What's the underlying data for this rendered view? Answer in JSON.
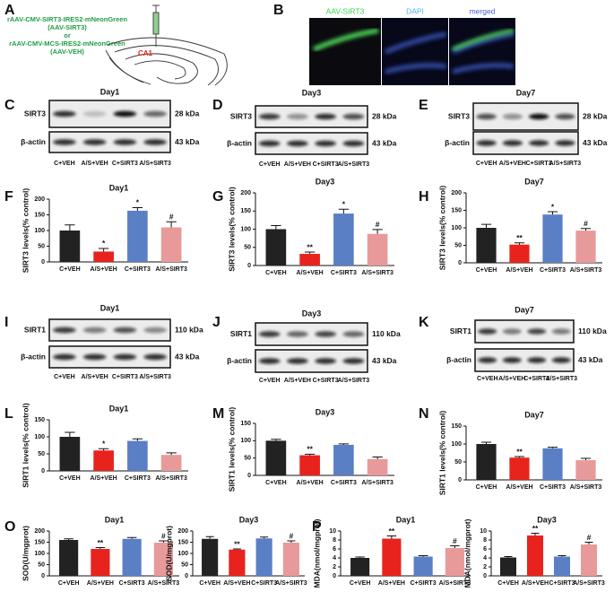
{
  "illustration": {
    "letter": "A",
    "construct_1": "rAAV-CMV-SIRT3-IRES2-mNeonGreen",
    "construct_1_short": "(AAV-SIRT3)",
    "conjunction": "or",
    "construct_2": "rAAV-CMV-MCS-IRES2-mNeonGreen",
    "construct_2_short": "(AAV-VEH)",
    "region": "CA1"
  },
  "micrograph": {
    "letter": "B",
    "labels": [
      "AAV-SIRT3",
      "DAPI",
      "merged"
    ]
  },
  "blots": [
    {
      "letter": "C",
      "title": "Day1",
      "rows": [
        {
          "protein": "SIRT3",
          "size": "28 kDa"
        },
        {
          "protein": "β-actin",
          "size": "43 kDa"
        }
      ],
      "lanes": [
        "C+VEH",
        "A/S+VEH",
        "C+SIRT3",
        "A/S+SIRT3"
      ]
    },
    {
      "letter": "D",
      "title": "Day3",
      "rows": [
        {
          "protein": "SIRT3",
          "size": "28 kDa"
        },
        {
          "protein": "β-actin",
          "size": "43 kDa"
        }
      ],
      "lanes": [
        "C+VEH",
        "A/S+VEH",
        "C+SIRT3",
        "A/S+SIRT3"
      ]
    },
    {
      "letter": "E",
      "title": "Day7",
      "rows": [
        {
          "protein": "SIRT3",
          "size": "28 kDa"
        },
        {
          "protein": "β-actin",
          "size": "43 kDa"
        }
      ],
      "lanes": [
        "C+VEH",
        "A/S+VEH",
        "C+SIRT3",
        "A/S+SIRT3"
      ]
    },
    {
      "letter": "I",
      "title": "Day1",
      "rows": [
        {
          "protein": "SIRT1",
          "size": "110 kDa"
        },
        {
          "protein": "β-actin",
          "size": "43 kDa"
        }
      ],
      "lanes": [
        "C+VEH",
        "A/S+VEH",
        "C+SIRT3",
        "A/S+SIRT3"
      ]
    },
    {
      "letter": "J",
      "title": "Day3",
      "rows": [
        {
          "protein": "SIRT1",
          "size": "110 kDa"
        },
        {
          "protein": "β-actin",
          "size": "43 kDa"
        }
      ],
      "lanes": [
        "C+VEH",
        "A/S+VEH",
        "C+SIRT3",
        "A/S+SIRT3"
      ]
    },
    {
      "letter": "K",
      "title": "Day7",
      "rows": [
        {
          "protein": "SIRT1",
          "size": "110 kDa"
        },
        {
          "protein": "β-actin",
          "size": "43 kDa"
        }
      ],
      "lanes": [
        "C+VEH",
        "A/S+VEH",
        "C+SIRT3",
        "A/S+SIRT3"
      ]
    }
  ],
  "chart_data": [
    {
      "type": "bar",
      "panel_label": "F",
      "title": "Day1",
      "y_label": "SIRT3 levels(% control)",
      "categories": [
        "C+VEH",
        "A/S+VEH",
        "C+SIRT3",
        "A/S+SIRT3"
      ],
      "values": [
        100,
        33,
        163,
        110
      ],
      "errors": [
        18,
        10,
        10,
        18
      ],
      "annotations": [
        null,
        "*",
        "*",
        "#"
      ],
      "colors": [
        "#222222",
        "#e8231e",
        "#5b7fc4",
        "#e89a9a"
      ],
      "ylim": [
        0,
        200
      ],
      "yticks": [
        0,
        50,
        100,
        150,
        200
      ]
    },
    {
      "type": "bar",
      "panel_label": "G",
      "title": "Day3",
      "y_label": "SIRT3 levels(% control)",
      "categories": [
        "C+VEH",
        "A/S+VEH",
        "C+SIRT3",
        "A/S+SIRT3"
      ],
      "values": [
        100,
        32,
        143,
        87
      ],
      "errors": [
        10,
        5,
        12,
        12
      ],
      "annotations": [
        null,
        "**",
        "*",
        "#"
      ],
      "colors": [
        "#222222",
        "#e8231e",
        "#5b7fc4",
        "#e89a9a"
      ],
      "ylim": [
        0,
        200
      ],
      "yticks": [
        0,
        50,
        100,
        150,
        200
      ]
    },
    {
      "type": "bar",
      "panel_label": "H",
      "title": "Day7",
      "y_label": "SIRT3 levels(% control)",
      "categories": [
        "C+VEH",
        "A/S+VEH",
        "C+SIRT3",
        "A/S+SIRT3"
      ],
      "values": [
        100,
        52,
        138,
        92
      ],
      "errors": [
        10,
        5,
        8,
        6
      ],
      "annotations": [
        null,
        "**",
        "*",
        "#"
      ],
      "colors": [
        "#222222",
        "#e8231e",
        "#5b7fc4",
        "#e89a9a"
      ],
      "ylim": [
        0,
        200
      ],
      "yticks": [
        0,
        50,
        100,
        150,
        200
      ]
    },
    {
      "type": "bar",
      "panel_label": "L",
      "title": "Day1",
      "y_label": "SIRT1 levels(% control)",
      "categories": [
        "C+VEH",
        "A/S+VEH",
        "C+SIRT3",
        "A/S+SIRT3"
      ],
      "values": [
        100,
        60,
        88,
        47
      ],
      "errors": [
        13,
        5,
        6,
        6
      ],
      "annotations": [
        null,
        "*",
        null,
        null
      ],
      "colors": [
        "#222222",
        "#e8231e",
        "#5b7fc4",
        "#e89a9a"
      ],
      "ylim": [
        0,
        150
      ],
      "yticks": [
        0,
        50,
        100,
        150
      ]
    },
    {
      "type": "bar",
      "panel_label": "M",
      "title": "Day3",
      "y_label": "SIRT1 levels(% control)",
      "categories": [
        "C+VEH",
        "A/S+VEH",
        "C+SIRT3",
        "A/S+SIRT3"
      ],
      "values": [
        100,
        58,
        88,
        47
      ],
      "errors": [
        4,
        3,
        3,
        6
      ],
      "annotations": [
        null,
        "**",
        null,
        null
      ],
      "colors": [
        "#222222",
        "#e8231e",
        "#5b7fc4",
        "#e89a9a"
      ],
      "ylim": [
        0,
        150
      ],
      "yticks": [
        0,
        50,
        100,
        150
      ]
    },
    {
      "type": "bar",
      "panel_label": "N",
      "title": "Day7",
      "y_label": "SIRT1 levels(% control)",
      "categories": [
        "C+VEH",
        "A/S+VEH",
        "C+SIRT3",
        "A/S+SIRT3"
      ],
      "values": [
        100,
        62,
        88,
        55
      ],
      "errors": [
        5,
        3,
        3,
        5
      ],
      "annotations": [
        null,
        "**",
        null,
        null
      ],
      "colors": [
        "#222222",
        "#e8231e",
        "#5b7fc4",
        "#e89a9a"
      ],
      "ylim": [
        0,
        150
      ],
      "yticks": [
        0,
        50,
        100,
        150
      ]
    },
    {
      "type": "bar",
      "panel_label": "O",
      "title": "Day1",
      "y_label": "SOD(U/mgprot)",
      "categories": [
        "C+VEH",
        "A/S+VEH",
        "C+SIRT3",
        "A/S+SIRT3"
      ],
      "values": [
        160,
        120,
        165,
        148
      ],
      "errors": [
        5,
        6,
        6,
        8
      ],
      "annotations": [
        null,
        "**",
        null,
        "#"
      ],
      "colors": [
        "#222222",
        "#e8231e",
        "#5b7fc4",
        "#e89a9a"
      ],
      "ylim": [
        0,
        200
      ],
      "yticks": [
        0,
        50,
        100,
        150,
        200
      ]
    },
    {
      "type": "bar",
      "title": "Day3",
      "y_label": "SOD(U/mgprot)",
      "categories": [
        "C+VEH",
        "A/S+VEH",
        "C+SIRT3",
        "A/S+SIRT3"
      ],
      "values": [
        165,
        117,
        167,
        148
      ],
      "errors": [
        10,
        3,
        6,
        8
      ],
      "annotations": [
        null,
        "**",
        null,
        "#"
      ],
      "colors": [
        "#222222",
        "#e8231e",
        "#5b7fc4",
        "#e89a9a"
      ],
      "ylim": [
        0,
        200
      ],
      "yticks": [
        0,
        50,
        100,
        150,
        200
      ]
    },
    {
      "type": "bar",
      "panel_label": "P",
      "title": "Day1",
      "y_label": "MDA(nmol/mgprot)",
      "categories": [
        "C+VEH",
        "A/S+VEH",
        "C+SIRT3",
        "A/S+SIRT3"
      ],
      "values": [
        4.0,
        8.3,
        4.3,
        6.2
      ],
      "errors": [
        0.2,
        0.6,
        0.2,
        0.5
      ],
      "annotations": [
        null,
        "**",
        null,
        "#"
      ],
      "colors": [
        "#222222",
        "#e8231e",
        "#5b7fc4",
        "#e89a9a"
      ],
      "ylim": [
        0,
        10
      ],
      "yticks": [
        0,
        2,
        4,
        6,
        8,
        10
      ]
    },
    {
      "type": "bar",
      "title": "Day3",
      "y_label": "MDA(nmol/mgprot)",
      "categories": [
        "C+VEH",
        "A/S+VEH",
        "C+SIRT3",
        "A/S+SIRT3"
      ],
      "values": [
        4.1,
        9.0,
        4.3,
        7.0
      ],
      "errors": [
        0.2,
        0.5,
        0.2,
        0.5
      ],
      "annotations": [
        null,
        "**",
        null,
        "#"
      ],
      "colors": [
        "#222222",
        "#e8231e",
        "#5b7fc4",
        "#e89a9a"
      ],
      "ylim": [
        0,
        10
      ],
      "yticks": [
        0,
        2,
        4,
        6,
        8,
        10
      ]
    }
  ]
}
